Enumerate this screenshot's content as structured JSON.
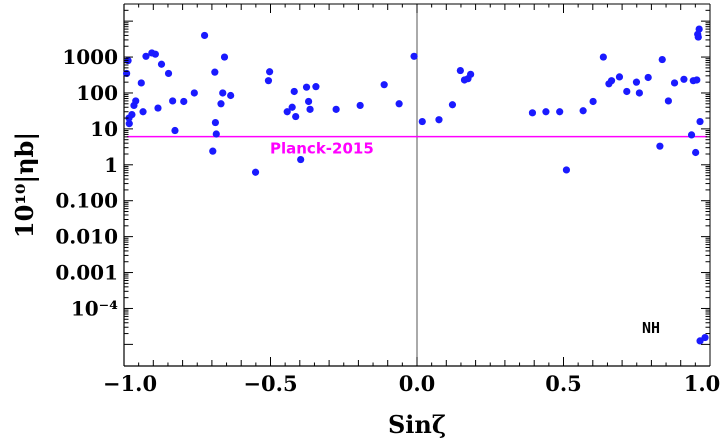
{
  "chart_data": {
    "type": "scatter",
    "xlabel": "Sinζ",
    "ylabel": "10¹⁰|ηb|",
    "xlim": [
      -1.0,
      1.0
    ],
    "ylog": true,
    "ylim": [
      2.5e-06,
      30000
    ],
    "x_ticks": [
      {
        "value": -1.0,
        "label": "−1.0"
      },
      {
        "value": -0.5,
        "label": "−0.5"
      },
      {
        "value": 0.0,
        "label": "0.0"
      },
      {
        "value": 0.5,
        "label": "0.5"
      },
      {
        "value": 1.0,
        "label": "1.0"
      }
    ],
    "y_ticks": [
      {
        "value": 1000,
        "label": "1000"
      },
      {
        "value": 100,
        "label": "100"
      },
      {
        "value": 10,
        "label": "10"
      },
      {
        "value": 1,
        "label": "1"
      },
      {
        "value": 0.1,
        "label": "0.100"
      },
      {
        "value": 0.01,
        "label": "0.010"
      },
      {
        "value": 0.001,
        "label": "0.001"
      },
      {
        "value": 0.0001,
        "label": "10⁻⁴"
      }
    ],
    "grid": false,
    "vertical_line_x": 0.0,
    "reference_line": {
      "label": "Planck-2015",
      "y": 6.1,
      "color": "#ff00ff"
    },
    "annotation": "NH",
    "marker_color": "#1a1aff",
    "points": [
      [
        -0.991,
        350
      ],
      [
        -0.986,
        800
      ],
      [
        -0.983,
        20
      ],
      [
        -0.982,
        14
      ],
      [
        -0.973,
        25
      ],
      [
        -0.966,
        45
      ],
      [
        -0.96,
        60
      ],
      [
        -0.941,
        190
      ],
      [
        -0.935,
        30
      ],
      [
        -0.925,
        1050
      ],
      [
        -0.905,
        1300
      ],
      [
        -0.893,
        1200
      ],
      [
        -0.884,
        38
      ],
      [
        -0.872,
        630
      ],
      [
        -0.848,
        350
      ],
      [
        -0.834,
        60
      ],
      [
        -0.826,
        9
      ],
      [
        -0.796,
        58
      ],
      [
        -0.76,
        100
      ],
      [
        -0.725,
        4000
      ],
      [
        -0.697,
        2.4
      ],
      [
        -0.69,
        380
      ],
      [
        -0.688,
        15
      ],
      [
        -0.685,
        7.2
      ],
      [
        -0.669,
        50
      ],
      [
        -0.663,
        100
      ],
      [
        -0.657,
        1000
      ],
      [
        -0.636,
        85
      ],
      [
        -0.551,
        0.62
      ],
      [
        -0.507,
        220
      ],
      [
        -0.503,
        390
      ],
      [
        -0.443,
        30
      ],
      [
        -0.426,
        40
      ],
      [
        -0.419,
        110
      ],
      [
        -0.414,
        22
      ],
      [
        -0.397,
        1.4
      ],
      [
        -0.377,
        145
      ],
      [
        -0.37,
        58
      ],
      [
        -0.365,
        35
      ],
      [
        -0.345,
        150
      ],
      [
        -0.276,
        35
      ],
      [
        -0.194,
        45
      ],
      [
        -0.112,
        170
      ],
      [
        -0.061,
        50
      ],
      [
        -0.01,
        1050
      ],
      [
        0.018,
        16
      ],
      [
        0.075,
        18
      ],
      [
        0.121,
        47
      ],
      [
        0.148,
        420
      ],
      [
        0.162,
        230
      ],
      [
        0.174,
        250
      ],
      [
        0.183,
        330
      ],
      [
        0.394,
        28
      ],
      [
        0.44,
        30
      ],
      [
        0.487,
        30
      ],
      [
        0.51,
        0.72
      ],
      [
        0.567,
        32
      ],
      [
        0.601,
        58
      ],
      [
        0.636,
        1000
      ],
      [
        0.655,
        180
      ],
      [
        0.664,
        220
      ],
      [
        0.691,
        280
      ],
      [
        0.716,
        110
      ],
      [
        0.749,
        200
      ],
      [
        0.759,
        100
      ],
      [
        0.789,
        270
      ],
      [
        0.829,
        3.3
      ],
      [
        0.837,
        850
      ],
      [
        0.858,
        60
      ],
      [
        0.879,
        190
      ],
      [
        0.911,
        240
      ],
      [
        0.937,
        6.8
      ],
      [
        0.943,
        220
      ],
      [
        0.951,
        2.2
      ],
      [
        0.955,
        230
      ],
      [
        0.958,
        4300
      ],
      [
        0.96,
        3600
      ],
      [
        0.963,
        6000
      ],
      [
        0.966,
        16
      ],
      [
        0.966,
        1.25e-05
      ],
      [
        0.983,
        1.55e-05
      ]
    ]
  }
}
